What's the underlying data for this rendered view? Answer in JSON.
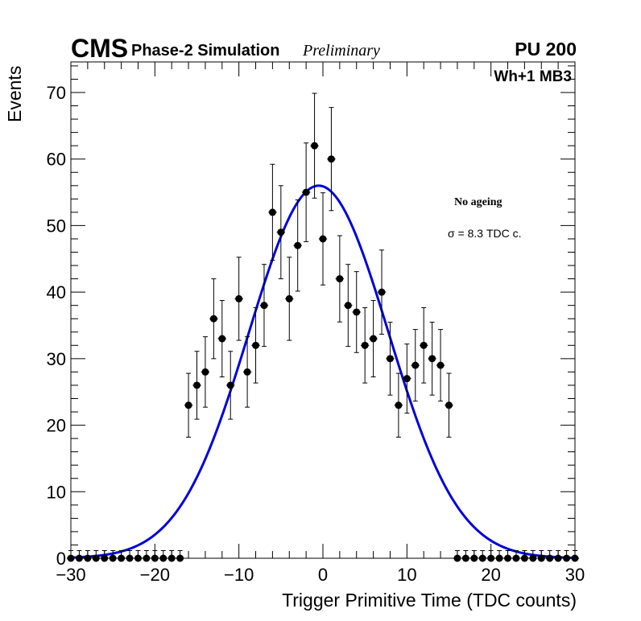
{
  "chart_data": {
    "type": "scatter",
    "header": {
      "experiment": "CMS",
      "subtitle": "Phase-2 Simulation",
      "status": "Preliminary",
      "pileup": "PU 200"
    },
    "region_label": "Wh+1 MB3",
    "annotations": [
      "No ageing",
      "σ = 8.3 TDC c."
    ],
    "xlabel": "Trigger Primitive Time (TDC counts)",
    "ylabel": "Events",
    "xlim": [
      -30,
      30
    ],
    "ylim": [
      0,
      75
    ],
    "x_ticks": [
      -30,
      -20,
      -10,
      0,
      10,
      20,
      30
    ],
    "x_tick_labels": [
      "−30",
      "−20",
      "−10",
      "0",
      "10",
      "20",
      "30"
    ],
    "y_ticks": [
      0,
      10,
      20,
      30,
      40,
      50,
      60,
      70
    ],
    "y_tick_labels": [
      "0",
      "10",
      "20",
      "30",
      "40",
      "50",
      "60",
      "70"
    ],
    "series": [
      {
        "name": "data",
        "style": "points-with-errors",
        "color": "#000000",
        "x": [
          -30,
          -29,
          -28,
          -27,
          -26,
          -25,
          -24,
          -23,
          -22,
          -21,
          -20,
          -19,
          -18,
          -17,
          -16,
          -15,
          -14,
          -13,
          -12,
          -11,
          -10,
          -9,
          -8,
          -7,
          -6,
          -5,
          -4,
          -3,
          -2,
          -1,
          0,
          1,
          2,
          3,
          4,
          5,
          6,
          7,
          8,
          9,
          10,
          11,
          12,
          13,
          14,
          15,
          16,
          17,
          18,
          19,
          20,
          21,
          22,
          23,
          24,
          25,
          26,
          27,
          28,
          29,
          30
        ],
        "y": [
          0,
          0,
          0,
          0,
          0,
          0,
          0,
          0,
          0,
          0,
          0,
          0,
          0,
          0,
          23,
          26,
          28,
          36,
          33,
          26,
          39,
          28,
          32,
          38,
          52,
          49,
          39,
          47,
          55,
          62,
          48,
          60,
          42,
          38,
          37,
          32,
          33,
          40,
          30,
          23,
          27,
          29,
          32,
          30,
          29,
          23,
          0,
          0,
          0,
          0,
          0,
          0,
          0,
          0,
          0,
          0,
          0,
          0,
          0,
          0,
          0
        ]
      },
      {
        "name": "gaussian fit",
        "style": "line",
        "color": "#0000dd",
        "function": "gaussian",
        "amplitude": 56,
        "mean": -0.5,
        "sigma": 8.3
      }
    ]
  }
}
